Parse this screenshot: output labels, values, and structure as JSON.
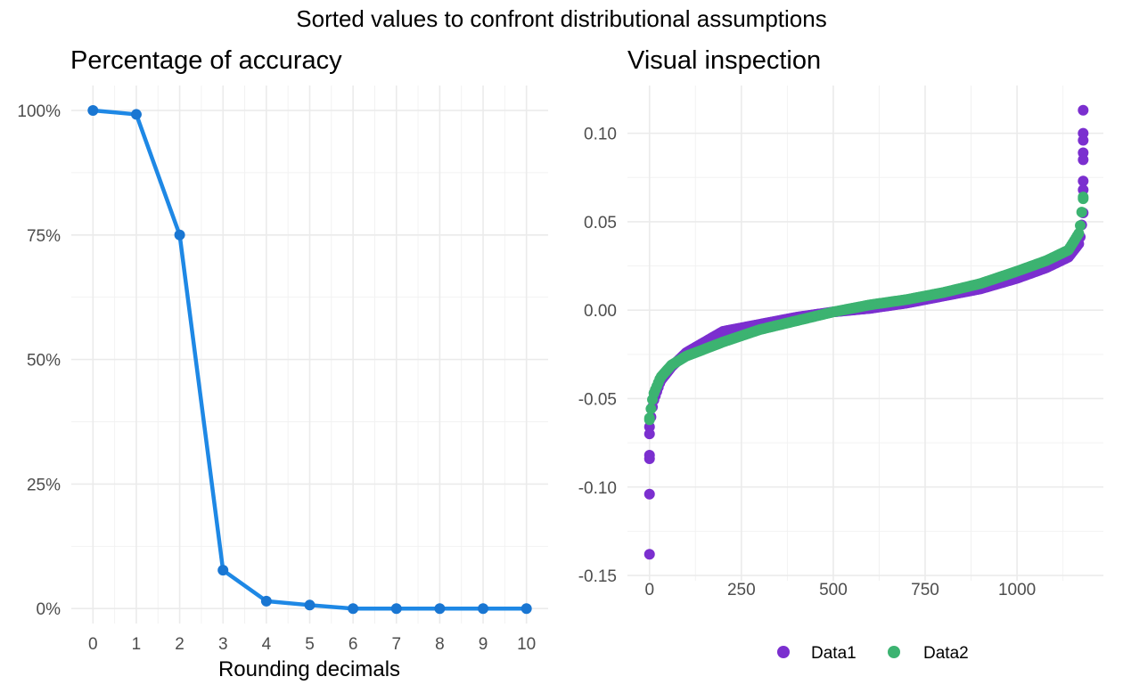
{
  "figure": {
    "title": "Sorted values to confront distributional assumptions"
  },
  "chart_data": [
    {
      "type": "line",
      "title": "Percentage of accuracy",
      "xlabel": "Rounding decimals",
      "ylabel": "",
      "x": [
        0,
        1,
        2,
        3,
        4,
        5,
        6,
        7,
        8,
        9,
        10
      ],
      "values": [
        1.0,
        0.992,
        0.75,
        0.077,
        0.015,
        0.007,
        0.0,
        0.0,
        0.0,
        0.0,
        0.0
      ],
      "xlim": [
        -0.5,
        10.5
      ],
      "ylim": [
        -0.03,
        1.05
      ],
      "xticks": [
        "0",
        "1",
        "2",
        "3",
        "4",
        "5",
        "6",
        "7",
        "8",
        "9",
        "10"
      ],
      "yticks": [
        {
          "value": 0.0,
          "label": "0%"
        },
        {
          "value": 0.25,
          "label": "25%"
        },
        {
          "value": 0.5,
          "label": "50%"
        },
        {
          "value": 0.75,
          "label": "75%"
        },
        {
          "value": 1.0,
          "label": "100%"
        }
      ],
      "grid": true,
      "color": "#1e88e5"
    },
    {
      "type": "scatter",
      "title": "Visual inspection",
      "xlabel": "",
      "ylabel": "",
      "n_points": 1180,
      "xlim": [
        -60,
        1235
      ],
      "ylim": [
        -0.153,
        0.127
      ],
      "xticks": [
        {
          "value": 0,
          "label": "0"
        },
        {
          "value": 250,
          "label": "250"
        },
        {
          "value": 500,
          "label": "500"
        },
        {
          "value": 750,
          "label": "750"
        },
        {
          "value": 1000,
          "label": "1000"
        }
      ],
      "yticks": [
        {
          "value": -0.15,
          "label": "-0.15"
        },
        {
          "value": -0.1,
          "label": "-0.10"
        },
        {
          "value": -0.05,
          "label": "-0.05"
        },
        {
          "value": 0.0,
          "label": "0.00"
        },
        {
          "value": 0.05,
          "label": "0.05"
        },
        {
          "value": 0.1,
          "label": "0.10"
        }
      ],
      "grid": true,
      "legend_position": "bottom",
      "series": [
        {
          "name": "Data1",
          "color": "#7b2fcf",
          "curve": [
            [
              0,
              -0.066
            ],
            [
              10,
              -0.052
            ],
            [
              30,
              -0.04
            ],
            [
              60,
              -0.032
            ],
            [
              100,
              -0.024
            ],
            [
              200,
              -0.012
            ],
            [
              300,
              -0.008
            ],
            [
              400,
              -0.004
            ],
            [
              500,
              -0.001
            ],
            [
              600,
              0.001
            ],
            [
              700,
              0.004
            ],
            [
              800,
              0.008
            ],
            [
              900,
              0.012
            ],
            [
              1000,
              0.018
            ],
            [
              1080,
              0.024
            ],
            [
              1140,
              0.03
            ],
            [
              1170,
              0.038
            ],
            [
              1180,
              0.055
            ]
          ],
          "extremes": [
            [
              0,
              -0.138
            ],
            [
              0,
              -0.104
            ],
            [
              0,
              -0.084
            ],
            [
              0,
              -0.082
            ],
            [
              0,
              -0.07
            ],
            [
              1180,
              0.113
            ],
            [
              1180,
              0.1
            ],
            [
              1180,
              0.096
            ],
            [
              1180,
              0.089
            ],
            [
              1180,
              0.085
            ],
            [
              1180,
              0.073
            ],
            [
              1180,
              0.068
            ]
          ]
        },
        {
          "name": "Data2",
          "color": "#3cb371",
          "curve": [
            [
              0,
              -0.061
            ],
            [
              10,
              -0.048
            ],
            [
              30,
              -0.038
            ],
            [
              60,
              -0.031
            ],
            [
              100,
              -0.026
            ],
            [
              200,
              -0.018
            ],
            [
              300,
              -0.011
            ],
            [
              400,
              -0.006
            ],
            [
              500,
              -0.001
            ],
            [
              600,
              0.003
            ],
            [
              700,
              0.006
            ],
            [
              800,
              0.01
            ],
            [
              900,
              0.015
            ],
            [
              1000,
              0.022
            ],
            [
              1080,
              0.028
            ],
            [
              1140,
              0.034
            ],
            [
              1170,
              0.044
            ],
            [
              1180,
              0.063
            ]
          ],
          "extremes": [
            [
              0,
              -0.062
            ],
            [
              1180,
              0.064
            ]
          ]
        }
      ]
    }
  ]
}
